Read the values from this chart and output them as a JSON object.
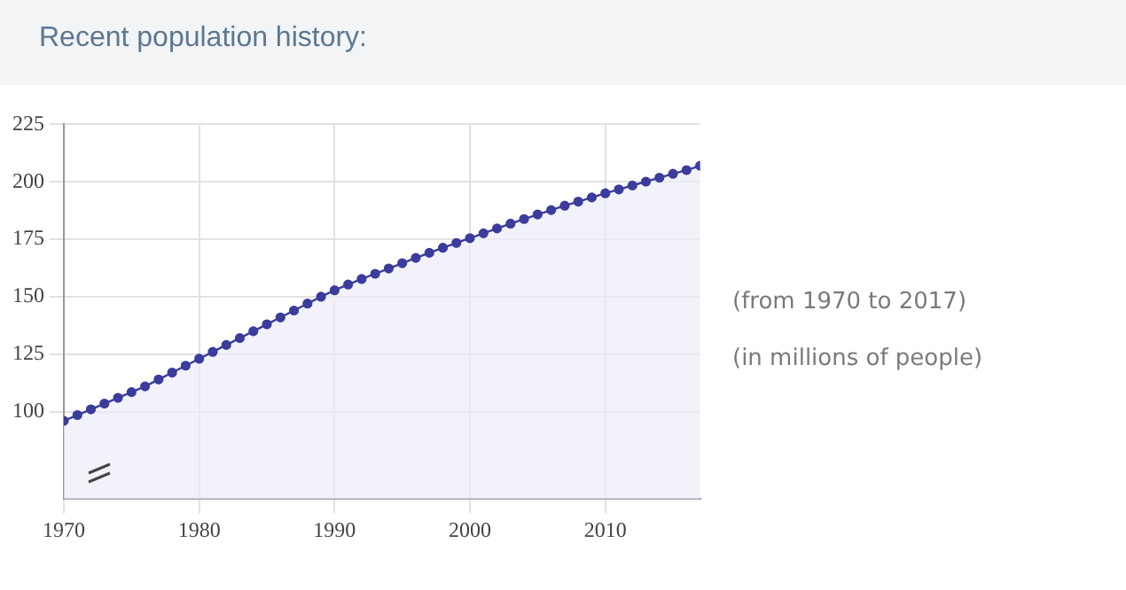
{
  "chart_data": {
    "type": "area",
    "title": "Recent population history:",
    "annotations": [
      "(from 1970 to 2017)",
      "(in millions of people)"
    ],
    "x": [
      1970,
      1971,
      1972,
      1973,
      1974,
      1975,
      1976,
      1977,
      1978,
      1979,
      1980,
      1981,
      1982,
      1983,
      1984,
      1985,
      1986,
      1987,
      1988,
      1989,
      1990,
      1991,
      1992,
      1993,
      1994,
      1995,
      1996,
      1997,
      1998,
      1999,
      2000,
      2001,
      2002,
      2003,
      2004,
      2005,
      2006,
      2007,
      2008,
      2009,
      2010,
      2011,
      2012,
      2013,
      2014,
      2015,
      2016,
      2017
    ],
    "series": [
      {
        "color": "#3c3c9c",
        "values": [
          96,
          98.5,
          101,
          103.5,
          106,
          108.5,
          111,
          114,
          117,
          120,
          123,
          126,
          129,
          132,
          135,
          138,
          141,
          144,
          147,
          150,
          152.8,
          155.3,
          157.7,
          160,
          162.3,
          164.6,
          166.9,
          169.1,
          171.3,
          173.4,
          175.5,
          177.6,
          179.7,
          181.8,
          183.8,
          185.8,
          187.7,
          189.6,
          191.4,
          193.2,
          195,
          196.7,
          198.4,
          200.1,
          201.8,
          203.5,
          205.1,
          207
        ]
      }
    ],
    "xlim": [
      1970,
      2017
    ],
    "xticks": [
      1970,
      1980,
      1990,
      2000,
      2010
    ],
    "ylim": [
      62,
      225
    ],
    "yticks": [
      100,
      125,
      150,
      175,
      200,
      225
    ],
    "grid": true,
    "marker": "circle",
    "legend": false
  }
}
